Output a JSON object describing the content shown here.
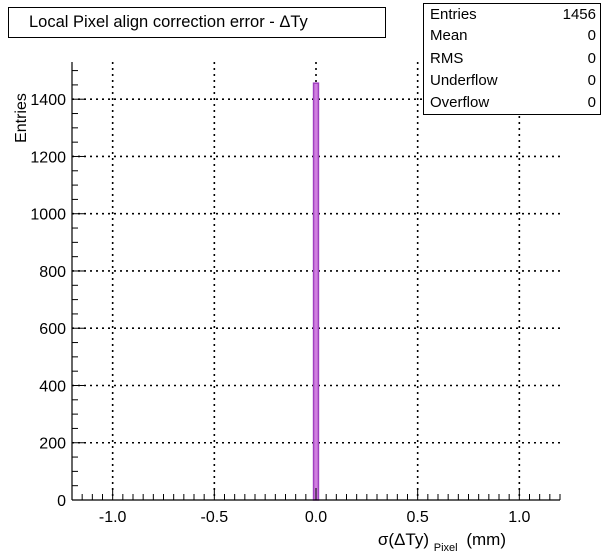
{
  "title": "Local Pixel align correction error - ΔTy",
  "stats": [
    {
      "key": "Entries",
      "value": "1456"
    },
    {
      "key": "Mean",
      "value": "0"
    },
    {
      "key": "RMS",
      "value": "0"
    },
    {
      "key": "Underflow",
      "value": "0"
    },
    {
      "key": "Overflow",
      "value": "0"
    }
  ],
  "colors": {
    "histogram_line": "#a040c0",
    "histogram_fill": "#d080e0",
    "grid": "#000000"
  },
  "chart_data": {
    "type": "bar",
    "title": "Local Pixel align correction error - ΔTy",
    "ylabel": "Entries",
    "xlabel": {
      "main": "σ(ΔTy)",
      "sub": "Pixel",
      "unit": "(mm)"
    },
    "xlim": [
      -1.2,
      1.2
    ],
    "ylim": [
      0,
      1530
    ],
    "xticks": [
      {
        "value": -1.0,
        "label": "-1.0"
      },
      {
        "value": -0.5,
        "label": "-0.5"
      },
      {
        "value": 0.0,
        "label": "0.0"
      },
      {
        "value": 0.5,
        "label": "0.5"
      },
      {
        "value": 1.0,
        "label": "1.0"
      }
    ],
    "yticks": [
      {
        "value": 0,
        "label": "0"
      },
      {
        "value": 200,
        "label": "200"
      },
      {
        "value": 400,
        "label": "400"
      },
      {
        "value": 600,
        "label": "600"
      },
      {
        "value": 800,
        "label": "800"
      },
      {
        "value": 1000,
        "label": "1000"
      },
      {
        "value": 1200,
        "label": "1200"
      },
      {
        "value": 1400,
        "label": "1400"
      }
    ],
    "grid": true,
    "bins": [
      {
        "x_low": -0.012,
        "x_high": 0.012,
        "value": 1456
      }
    ]
  }
}
